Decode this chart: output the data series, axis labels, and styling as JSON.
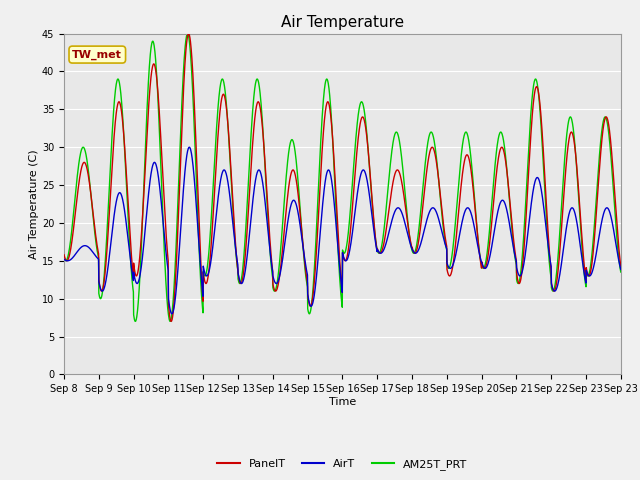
{
  "title": "Air Temperature",
  "xlabel": "Time",
  "ylabel": "Air Temperature (C)",
  "ylim": [
    0,
    45
  ],
  "yticks": [
    0,
    5,
    10,
    15,
    20,
    25,
    30,
    35,
    40,
    45
  ],
  "x_tick_labels": [
    "Sep 8",
    "Sep 9",
    "Sep 10",
    "Sep 11",
    "Sep 12",
    "Sep 13",
    "Sep 14",
    "Sep 15",
    "Sep 16",
    "Sep 17",
    "Sep 18",
    "Sep 19",
    "Sep 20",
    "Sep 21",
    "Sep 22",
    "Sep 23",
    "Sep 23"
  ],
  "line_colors": {
    "PanelT": "#cc0000",
    "AirT": "#0000cc",
    "AM25T_PRT": "#00cc00"
  },
  "line_widths": {
    "PanelT": 1.0,
    "AirT": 1.0,
    "AM25T_PRT": 1.0
  },
  "plot_bg_color": "#e8e8e8",
  "fig_bg_color": "#f0f0f0",
  "grid_color": "#ffffff",
  "annotation_text": "TW_met",
  "annotation_bg": "#ffffcc",
  "annotation_border": "#ccaa00",
  "annotation_text_color": "#990000",
  "title_fontsize": 11,
  "axis_label_fontsize": 8,
  "tick_fontsize": 7,
  "legend_fontsize": 8,
  "days": 16,
  "panel_peaks": [
    28,
    36,
    41,
    45,
    37,
    36,
    27,
    36,
    34,
    27,
    30,
    29,
    30,
    38,
    32,
    34
  ],
  "panel_mins": [
    15,
    11,
    13,
    7,
    12,
    12,
    11,
    9,
    15,
    16,
    16,
    13,
    14,
    12,
    11,
    13
  ],
  "am25_peaks": [
    30,
    39,
    44,
    45,
    39,
    39,
    31,
    39,
    36,
    32,
    32,
    32,
    32,
    39,
    34,
    34
  ],
  "am25_mins": [
    15,
    10,
    7,
    7,
    13,
    12,
    11,
    8,
    16,
    16,
    16,
    14,
    14,
    12,
    11,
    13
  ],
  "air_peaks": [
    17,
    24,
    28,
    30,
    27,
    27,
    23,
    27,
    27,
    22,
    22,
    22,
    23,
    26,
    22,
    22
  ],
  "air_mins": [
    15,
    11,
    12,
    8,
    13,
    12,
    12,
    9,
    15,
    16,
    16,
    14,
    14,
    13,
    11,
    13
  ],
  "panel_phase": 0.58,
  "am25_phase": 0.55,
  "air_phase": 0.6
}
